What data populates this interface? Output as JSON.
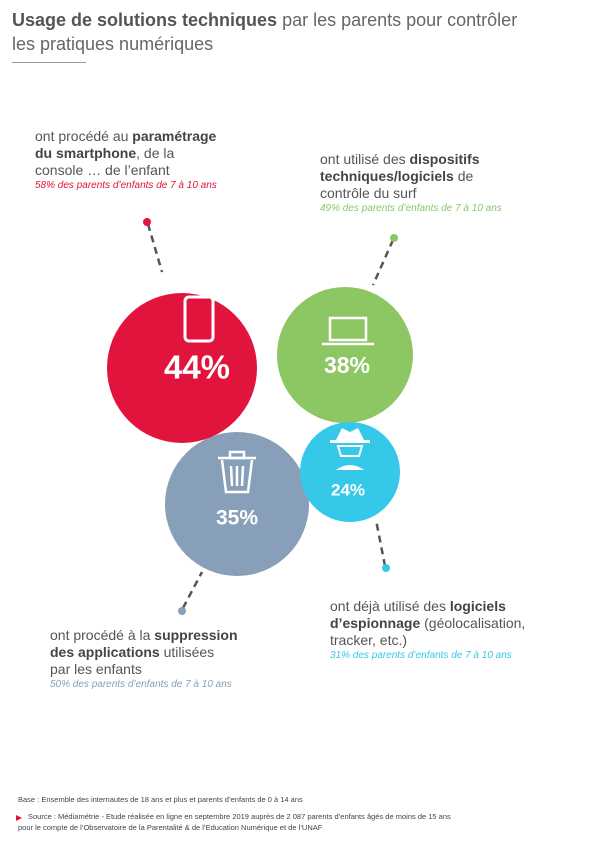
{
  "header": {
    "title_bold": "Usage de solutions techniques",
    "title_rest": " par les parents pour contrôler",
    "title_line2": "les pratiques numériques"
  },
  "bubbles": [
    {
      "label": "44%",
      "lines": [
        [
          "ont procédé au ",
          "paramétrage"
        ],
        [
          "du smartphone",
          ", de la"
        ],
        [
          "console … de l’enfant"
        ]
      ],
      "note": "58% des parents d’enfants de 7 à 10 ans"
    },
    {
      "label": "38%",
      "lines": [
        [
          "ont utilisé des ",
          "dispositifs"
        ],
        [
          "techniques/logiciels",
          " de"
        ],
        [
          "contrôle du surf"
        ]
      ],
      "note": "49% des parents d’enfants de 7 à 10 ans"
    },
    {
      "label": "35%",
      "lines": [
        [
          "ont procédé à la ",
          "suppression"
        ],
        [
          "des applications",
          " utilisées"
        ],
        [
          "par les enfants"
        ]
      ],
      "note": "50% des parents d’enfants de 7 à 10 ans"
    },
    {
      "label": "24%",
      "lines": [
        [
          "ont déjà utilisé des ",
          "logiciels"
        ],
        [
          "d’espionnage",
          " (géolocalisation,"
        ],
        [
          "tracker, etc.)"
        ]
      ],
      "note": "31% des parents d’enfants de 7 à 10 ans"
    }
  ],
  "footer": {
    "base": "Base : Ensemble des internautes de 18 ans et plus et parents d’enfants de 0 à 14 ans",
    "source_line1": "Source : Médiamétrie - Etude réalisée en ligne en septembre 2019 auprès de 2 087 parents d’enfants âgés de moins de 15 ans",
    "source_line2": "pour le compte de l’Observatoire de la Parentalité & de l’Education Numérique et de l’UNAF"
  }
}
